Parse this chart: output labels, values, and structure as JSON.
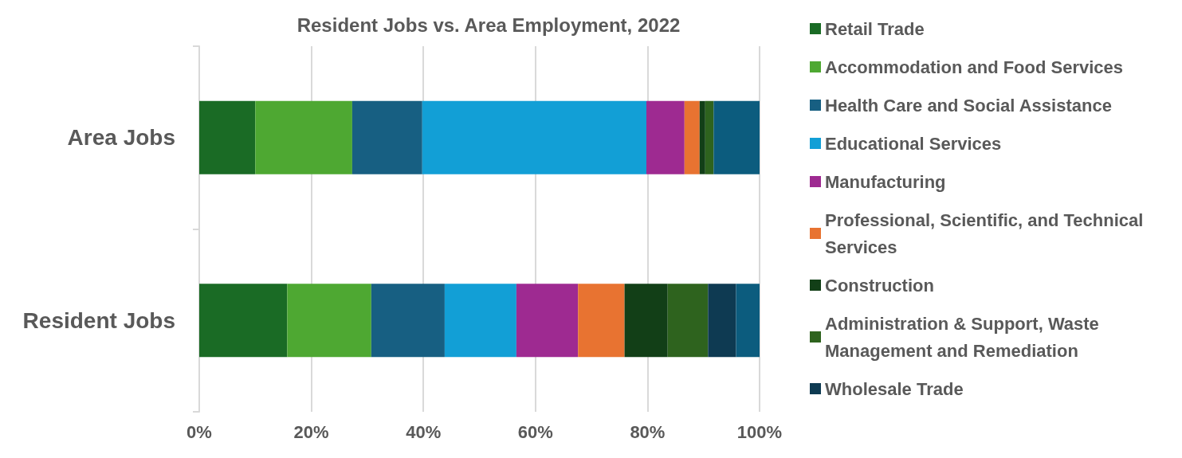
{
  "chart_data": {
    "type": "bar",
    "orientation": "horizontal",
    "stacked": true,
    "title": "Resident Jobs vs. Area Employment, 2022",
    "categories": [
      "Area Jobs",
      "Resident Jobs"
    ],
    "series": [
      {
        "name": "Retail Trade",
        "color": "#1a6b25",
        "values": [
          10.0,
          15.7
        ]
      },
      {
        "name": "Accommodation and Food Services",
        "color": "#4ea832",
        "values": [
          17.3,
          15.0
        ]
      },
      {
        "name": "Health Care and Social Assistance",
        "color": "#175f82",
        "values": [
          12.5,
          13.1
        ]
      },
      {
        "name": "Educational Services",
        "color": "#129fd6",
        "values": [
          40.0,
          12.8
        ]
      },
      {
        "name": "Manufacturing",
        "color": "#9e2a91",
        "values": [
          6.8,
          11.0
        ]
      },
      {
        "name": "Professional, Scientific, and Technical Services",
        "color": "#e87331",
        "values": [
          2.7,
          8.3
        ]
      },
      {
        "name": "Construction",
        "color": "#123f17",
        "values": [
          1.0,
          7.7
        ]
      },
      {
        "name": "Administration & Support, Waste Management and Remediation",
        "color": "#2e631e",
        "values": [
          1.5,
          7.2
        ]
      },
      {
        "name": "Wholesale Trade",
        "color": "#0e3a52",
        "values": [
          0,
          5.0
        ]
      },
      {
        "color": "#0c5c7e",
        "values": [
          8.2,
          4.2
        ]
      }
    ],
    "xlim": [
      0,
      100
    ],
    "xticks": [
      {
        "value": 0,
        "label": "0%"
      },
      {
        "value": 20,
        "label": "20%"
      },
      {
        "value": 40,
        "label": "40%"
      },
      {
        "value": 60,
        "label": "60%"
      },
      {
        "value": 80,
        "label": "80%"
      },
      {
        "value": 100,
        "label": "100%"
      }
    ],
    "grid": "x",
    "legend": "right"
  }
}
